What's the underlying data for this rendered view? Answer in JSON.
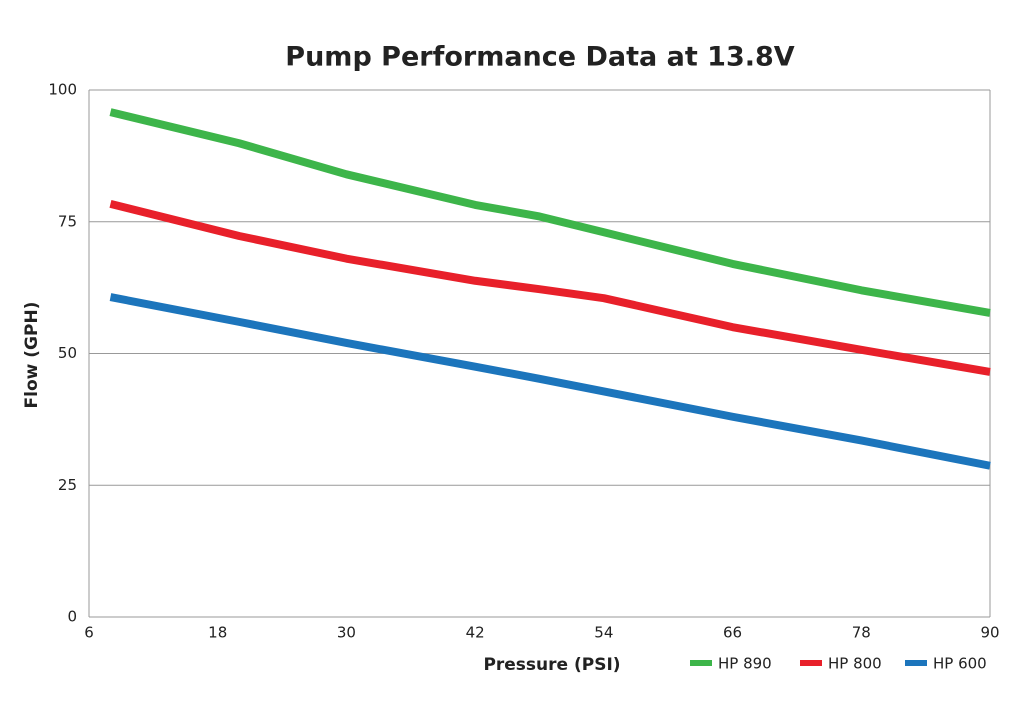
{
  "chart_data": {
    "type": "line",
    "title": "Pump Performance Data at 13.8V",
    "x_label": "Pressure (PSI)",
    "y_label": "Flow (GPH)",
    "x": [
      8,
      20,
      30,
      42,
      48,
      54,
      66,
      78,
      90
    ],
    "series": [
      {
        "name": "HP 890",
        "color": "#3db54a",
        "values": [
          95.8,
          89.9,
          84,
          78.2,
          76,
          73,
          67,
          62,
          57.7
        ]
      },
      {
        "name": "HP 800",
        "color": "#e8202a",
        "values": [
          78.4,
          72.3,
          68,
          63.8,
          62.2,
          60.5,
          55,
          50.7,
          46.5
        ]
      },
      {
        "name": "HP 600",
        "color": "#1c75bc",
        "values": [
          60.7,
          56,
          52,
          47.5,
          45.2,
          42.8,
          38,
          33.5,
          28.7
        ]
      }
    ],
    "xlim": [
      6,
      90
    ],
    "xticks": [
      6,
      18,
      30,
      42,
      54,
      66,
      78,
      90
    ],
    "ylim": [
      0,
      100
    ],
    "yticks": [
      0,
      25,
      50,
      75,
      100
    ],
    "grid": true
  }
}
